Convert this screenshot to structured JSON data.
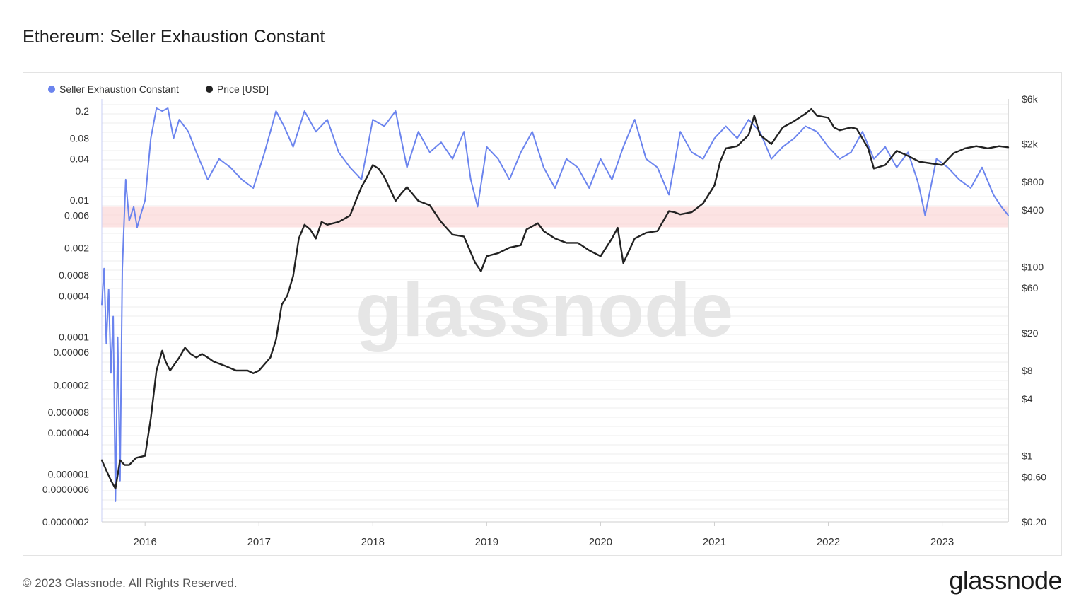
{
  "title": "Ethereum: Seller Exhaustion Constant",
  "footer": {
    "copyright": "© 2023 Glassnode. All Rights Reserved.",
    "logo": "glassnode"
  },
  "watermark": "glassnode",
  "colors": {
    "sec": "#6b84ee",
    "price": "#222222",
    "band": "#fbdada",
    "grid": "#ececec"
  },
  "chart_data": {
    "type": "line",
    "legend": [
      {
        "name": "Seller Exhaustion Constant",
        "color": "#6b84ee"
      },
      {
        "name": "Price [USD]",
        "color": "#222222"
      }
    ],
    "legend_position": "top-left",
    "grid": true,
    "x_axis": {
      "range": [
        2015.62,
        2023.58
      ],
      "ticks": [
        2016,
        2017,
        2018,
        2019,
        2020,
        2021,
        2022,
        2023
      ],
      "tick_labels": [
        "2016",
        "2017",
        "2018",
        "2019",
        "2020",
        "2021",
        "2022",
        "2023"
      ]
    },
    "y_left": {
      "scale": "log",
      "range": [
        2e-07,
        0.3
      ],
      "ticks": [
        0.2,
        0.08,
        0.04,
        0.01,
        0.006,
        0.002,
        0.0008,
        0.0004,
        0.0001,
        6e-05,
        2e-05,
        8e-06,
        4e-06,
        1e-06,
        6e-07,
        2e-07
      ],
      "tick_labels": [
        "0.2",
        "0.08",
        "0.04",
        "0.01",
        "0.006",
        "0.002",
        "0.0008",
        "0.0004",
        "0.0001",
        "0.00006",
        "0.00002",
        "0.000008",
        "0.000004",
        "0.000001",
        "0.0000006",
        "0.0000002"
      ]
    },
    "y_right": {
      "scale": "log",
      "range": [
        0.2,
        6000
      ],
      "ticks": [
        6000,
        2000,
        800,
        400,
        100,
        60,
        20,
        8,
        4,
        1,
        0.6,
        0.2
      ],
      "tick_labels": [
        "$6k",
        "$2k",
        "$800",
        "$400",
        "$100",
        "$60",
        "$20",
        "$8",
        "$4",
        "$1",
        "$0.60",
        "$0.20"
      ]
    },
    "band": {
      "from": 0.004,
      "to": 0.008
    },
    "series": [
      {
        "name": "Seller Exhaustion Constant",
        "axis": "left",
        "x": [
          2015.62,
          2015.64,
          2015.66,
          2015.68,
          2015.7,
          2015.72,
          2015.74,
          2015.76,
          2015.78,
          2015.8,
          2015.83,
          2015.86,
          2015.9,
          2015.93,
          2015.96,
          2016.0,
          2016.05,
          2016.1,
          2016.15,
          2016.2,
          2016.25,
          2016.3,
          2016.38,
          2016.45,
          2016.55,
          2016.65,
          2016.75,
          2016.85,
          2016.95,
          2017.05,
          2017.15,
          2017.22,
          2017.3,
          2017.4,
          2017.5,
          2017.6,
          2017.7,
          2017.8,
          2017.9,
          2018.0,
          2018.1,
          2018.2,
          2018.3,
          2018.4,
          2018.5,
          2018.6,
          2018.7,
          2018.8,
          2018.86,
          2018.92,
          2019.0,
          2019.1,
          2019.2,
          2019.3,
          2019.4,
          2019.5,
          2019.6,
          2019.7,
          2019.8,
          2019.9,
          2020.0,
          2020.1,
          2020.2,
          2020.3,
          2020.4,
          2020.5,
          2020.6,
          2020.7,
          2020.8,
          2020.9,
          2021.0,
          2021.1,
          2021.2,
          2021.3,
          2021.4,
          2021.5,
          2021.6,
          2021.7,
          2021.8,
          2021.9,
          2022.0,
          2022.1,
          2022.2,
          2022.3,
          2022.4,
          2022.5,
          2022.6,
          2022.7,
          2022.78,
          2022.8,
          2022.85,
          2022.95,
          2023.05,
          2023.15,
          2023.25,
          2023.35,
          2023.45,
          2023.52,
          2023.58
        ],
        "y": [
          0.0003,
          0.001,
          8e-05,
          0.0005,
          3e-05,
          0.0002,
          4e-07,
          0.0001,
          8e-07,
          0.001,
          0.02,
          0.005,
          0.008,
          0.004,
          0.006,
          0.01,
          0.08,
          0.22,
          0.2,
          0.22,
          0.08,
          0.15,
          0.1,
          0.05,
          0.02,
          0.04,
          0.03,
          0.02,
          0.015,
          0.05,
          0.2,
          0.12,
          0.06,
          0.2,
          0.1,
          0.15,
          0.05,
          0.03,
          0.02,
          0.15,
          0.12,
          0.2,
          0.03,
          0.1,
          0.05,
          0.07,
          0.04,
          0.1,
          0.02,
          0.008,
          0.06,
          0.04,
          0.02,
          0.05,
          0.1,
          0.03,
          0.015,
          0.04,
          0.03,
          0.015,
          0.04,
          0.02,
          0.06,
          0.15,
          0.04,
          0.03,
          0.012,
          0.1,
          0.05,
          0.04,
          0.08,
          0.12,
          0.08,
          0.15,
          0.1,
          0.04,
          0.06,
          0.08,
          0.12,
          0.1,
          0.06,
          0.04,
          0.05,
          0.1,
          0.04,
          0.06,
          0.03,
          0.05,
          0.02,
          0.015,
          0.006,
          0.04,
          0.03,
          0.02,
          0.015,
          0.03,
          0.012,
          0.008,
          0.006
        ]
      },
      {
        "name": "Price [USD]",
        "axis": "right",
        "x": [
          2015.62,
          2015.66,
          2015.7,
          2015.74,
          2015.78,
          2015.82,
          2015.86,
          2015.92,
          2016.0,
          2016.05,
          2016.1,
          2016.15,
          2016.18,
          2016.22,
          2016.3,
          2016.35,
          2016.4,
          2016.45,
          2016.5,
          2016.55,
          2016.6,
          2016.7,
          2016.8,
          2016.9,
          2016.95,
          2017.0,
          2017.1,
          2017.15,
          2017.2,
          2017.25,
          2017.3,
          2017.35,
          2017.4,
          2017.45,
          2017.5,
          2017.55,
          2017.6,
          2017.7,
          2017.8,
          2017.85,
          2017.9,
          2017.95,
          2018.0,
          2018.05,
          2018.1,
          2018.2,
          2018.25,
          2018.3,
          2018.4,
          2018.5,
          2018.6,
          2018.7,
          2018.8,
          2018.9,
          2018.95,
          2019.0,
          2019.1,
          2019.2,
          2019.3,
          2019.35,
          2019.45,
          2019.5,
          2019.6,
          2019.7,
          2019.8,
          2019.9,
          2020.0,
          2020.1,
          2020.15,
          2020.2,
          2020.3,
          2020.4,
          2020.5,
          2020.6,
          2020.65,
          2020.7,
          2020.8,
          2020.9,
          2021.0,
          2021.05,
          2021.1,
          2021.2,
          2021.3,
          2021.35,
          2021.4,
          2021.5,
          2021.6,
          2021.7,
          2021.8,
          2021.85,
          2021.9,
          2022.0,
          2022.05,
          2022.1,
          2022.2,
          2022.25,
          2022.35,
          2022.4,
          2022.5,
          2022.6,
          2022.7,
          2022.8,
          2022.9,
          2023.0,
          2023.1,
          2023.2,
          2023.3,
          2023.4,
          2023.5,
          2023.58
        ],
        "y": [
          0.9,
          0.7,
          0.55,
          0.45,
          0.9,
          0.8,
          0.8,
          0.95,
          1.0,
          2.5,
          8,
          13,
          10,
          8,
          11,
          14,
          12,
          11,
          12,
          11,
          10,
          9,
          8,
          8,
          7.5,
          8,
          11,
          17,
          40,
          50,
          80,
          200,
          280,
          250,
          200,
          300,
          280,
          300,
          350,
          500,
          700,
          900,
          1200,
          1100,
          900,
          500,
          600,
          700,
          500,
          450,
          300,
          220,
          210,
          110,
          90,
          130,
          140,
          160,
          170,
          250,
          290,
          240,
          200,
          180,
          180,
          150,
          130,
          200,
          260,
          110,
          200,
          230,
          240,
          390,
          380,
          360,
          380,
          470,
          730,
          1300,
          1800,
          1900,
          2500,
          4000,
          2500,
          2000,
          3000,
          3500,
          4200,
          4700,
          4000,
          3800,
          3000,
          2800,
          3000,
          2900,
          1800,
          1100,
          1200,
          1700,
          1500,
          1300,
          1250,
          1200,
          1600,
          1800,
          1900,
          1800,
          1900,
          1850
        ]
      }
    ]
  }
}
